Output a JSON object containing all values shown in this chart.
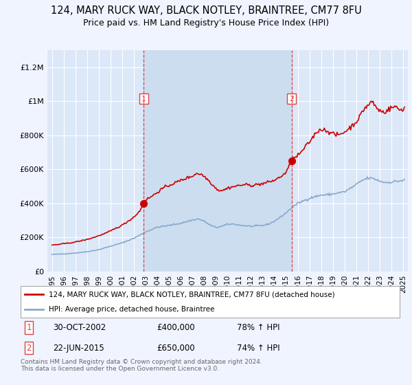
{
  "title": "124, MARY RUCK WAY, BLACK NOTLEY, BRAINTREE, CM77 8FU",
  "subtitle": "Price paid vs. HM Land Registry's House Price Index (HPI)",
  "ylim": [
    0,
    1300000
  ],
  "yticks": [
    0,
    200000,
    400000,
    600000,
    800000,
    1000000,
    1200000
  ],
  "ytick_labels": [
    "£0",
    "£200K",
    "£400K",
    "£600K",
    "£800K",
    "£1M",
    "£1.2M"
  ],
  "background_color": "#f0f4ff",
  "plot_bg_color": "#dce8f8",
  "highlight_color": "#ccddf0",
  "grid_color": "#ffffff",
  "sale1_price": 400000,
  "sale2_price": 650000,
  "legend_line1": "124, MARY RUCK WAY, BLACK NOTLEY, BRAINTREE, CM77 8FU (detached house)",
  "legend_line2": "HPI: Average price, detached house, Braintree",
  "footnote": "Contains HM Land Registry data © Crown copyright and database right 2024.\nThis data is licensed under the Open Government Licence v3.0.",
  "line_color_red": "#cc0000",
  "line_color_blue": "#88aacc",
  "dashed_vline_color": "#dd4444",
  "x_start_year": 1995.0,
  "sale1_year": 2002.83,
  "sale2_year": 2015.47,
  "x_end_year": 2025.1,
  "years_labels": [
    1995,
    1996,
    1997,
    1998,
    1999,
    2000,
    2001,
    2002,
    2003,
    2004,
    2005,
    2006,
    2007,
    2008,
    2009,
    2010,
    2011,
    2012,
    2013,
    2014,
    2015,
    2016,
    2017,
    2018,
    2019,
    2020,
    2021,
    2022,
    2023,
    2024,
    2025
  ]
}
